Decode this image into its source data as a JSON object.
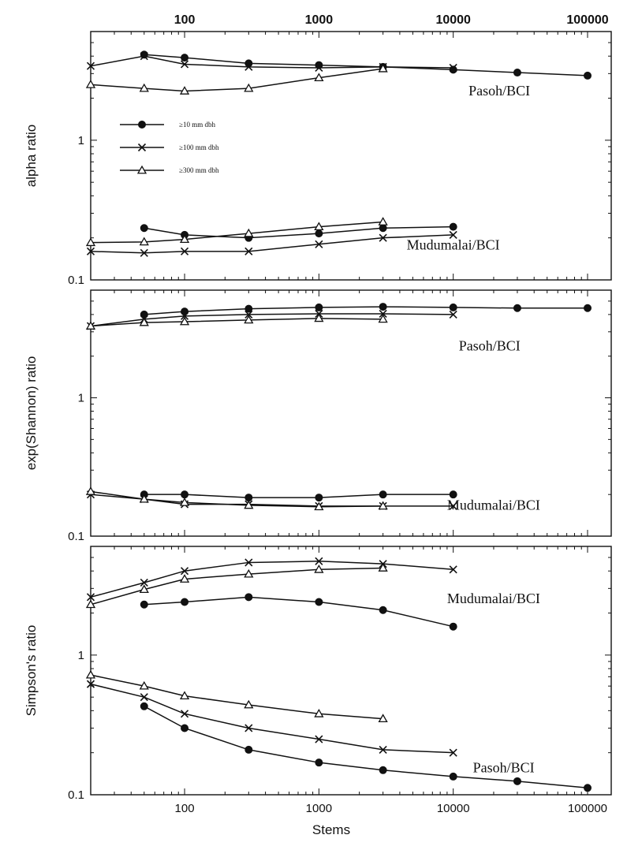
{
  "chart_data": [
    {
      "type": "line",
      "ylabel": "alpha ratio",
      "xscale": "log",
      "yscale": "log",
      "xlim": [
        20,
        150000
      ],
      "ylim": [
        0.1,
        6
      ],
      "yticks": [
        {
          "v": 0.1,
          "label": "0.1"
        },
        {
          "v": 1,
          "label": "1"
        }
      ],
      "top_xticks": [
        {
          "v": 100,
          "label": "100"
        },
        {
          "v": 1000,
          "label": "1000"
        },
        {
          "v": 10000,
          "label": "10000"
        },
        {
          "v": 100000,
          "label": "100000"
        }
      ],
      "legend": [
        {
          "label": "≥10 mm dbh",
          "marker": "circle"
        },
        {
          "label": "≥100 mm dbh",
          "marker": "x"
        },
        {
          "label": "≥300 mm dbh",
          "marker": "triangle"
        }
      ],
      "annotations": [
        {
          "text": "Pasoh/BCI",
          "x": 13000,
          "y": 2.1
        },
        {
          "text": "Mudumalai/BCI",
          "x": 4500,
          "y": 0.165
        }
      ],
      "series": [
        {
          "group": "Pasoh/BCI",
          "marker": "circle",
          "x": [
            50,
            100,
            300,
            1000,
            3000,
            10000,
            30000,
            100000
          ],
          "y": [
            4.1,
            3.9,
            3.55,
            3.45,
            3.35,
            3.2,
            3.05,
            2.9
          ]
        },
        {
          "group": "Pasoh/BCI",
          "marker": "x",
          "x": [
            20,
            50,
            100,
            300,
            1000,
            3000,
            10000
          ],
          "y": [
            3.4,
            4.0,
            3.5,
            3.35,
            3.3,
            3.35,
            3.3
          ]
        },
        {
          "group": "Pasoh/BCI",
          "marker": "triangle",
          "x": [
            20,
            50,
            100,
            300,
            1000,
            3000
          ],
          "y": [
            2.5,
            2.35,
            2.25,
            2.35,
            2.8,
            3.25
          ]
        },
        {
          "group": "Mudumalai/BCI",
          "marker": "circle",
          "x": [
            50,
            100,
            300,
            1000,
            3000,
            10000
          ],
          "y": [
            0.235,
            0.21,
            0.2,
            0.215,
            0.235,
            0.24
          ]
        },
        {
          "group": "Mudumalai/BCI",
          "marker": "x",
          "x": [
            20,
            50,
            100,
            300,
            1000,
            3000,
            10000
          ],
          "y": [
            0.16,
            0.156,
            0.16,
            0.16,
            0.18,
            0.2,
            0.21
          ]
        },
        {
          "group": "Mudumalai/BCI",
          "marker": "triangle",
          "x": [
            20,
            50,
            100,
            300,
            1000,
            3000
          ],
          "y": [
            0.185,
            0.187,
            0.195,
            0.215,
            0.24,
            0.26
          ]
        }
      ]
    },
    {
      "type": "line",
      "ylabel": "exp(Shannon) ratio",
      "xscale": "log",
      "yscale": "log",
      "xlim": [
        20,
        150000
      ],
      "ylim": [
        0.1,
        6
      ],
      "yticks": [
        {
          "v": 0.1,
          "label": "0.1"
        },
        {
          "v": 1,
          "label": "1"
        }
      ],
      "annotations": [
        {
          "text": "Pasoh/BCI",
          "x": 11000,
          "y": 2.2
        },
        {
          "text": "Mudumalai/BCI",
          "x": 9000,
          "y": 0.155
        }
      ],
      "series": [
        {
          "group": "Pasoh/BCI",
          "marker": "circle",
          "x": [
            50,
            100,
            300,
            1000,
            3000,
            10000,
            30000,
            100000
          ],
          "y": [
            4.0,
            4.2,
            4.4,
            4.5,
            4.55,
            4.5,
            4.45,
            4.45
          ]
        },
        {
          "group": "Pasoh/BCI",
          "marker": "x",
          "x": [
            20,
            50,
            100,
            300,
            1000,
            3000,
            10000
          ],
          "y": [
            3.3,
            3.7,
            3.9,
            4.0,
            4.05,
            4.05,
            4.0
          ]
        },
        {
          "group": "Pasoh/BCI",
          "marker": "triangle",
          "x": [
            20,
            50,
            100,
            300,
            1000,
            3000
          ],
          "y": [
            3.3,
            3.5,
            3.55,
            3.65,
            3.75,
            3.7
          ]
        },
        {
          "group": "Mudumalai/BCI",
          "marker": "circle",
          "x": [
            50,
            100,
            300,
            1000,
            3000,
            10000
          ],
          "y": [
            0.2,
            0.2,
            0.19,
            0.19,
            0.2,
            0.2
          ]
        },
        {
          "group": "Mudumalai/BCI",
          "marker": "x",
          "x": [
            20,
            50,
            100,
            300,
            1000,
            3000,
            10000
          ],
          "y": [
            0.2,
            0.185,
            0.17,
            0.17,
            0.165,
            0.165,
            0.165
          ]
        },
        {
          "group": "Mudumalai/BCI",
          "marker": "triangle",
          "x": [
            20,
            50,
            100,
            300,
            1000,
            3000
          ],
          "y": [
            0.21,
            0.185,
            0.175,
            0.167,
            0.163,
            0.165
          ]
        }
      ]
    },
    {
      "type": "line",
      "ylabel": "Simpson's ratio",
      "xlabel": "Stems",
      "xscale": "log",
      "yscale": "log",
      "xlim": [
        20,
        150000
      ],
      "ylim": [
        0.1,
        6
      ],
      "yticks": [
        {
          "v": 0.1,
          "label": "0.1"
        },
        {
          "v": 1,
          "label": "1"
        }
      ],
      "xticks": [
        {
          "v": 100,
          "label": "100"
        },
        {
          "v": 1000,
          "label": "1000"
        },
        {
          "v": 10000,
          "label": "10000"
        },
        {
          "v": 100000,
          "label": "100000"
        }
      ],
      "annotations": [
        {
          "text": "Mudumalai/BCI",
          "x": 9000,
          "y": 2.35
        },
        {
          "text": "Pasoh/BCI",
          "x": 14000,
          "y": 0.145
        }
      ],
      "series": [
        {
          "group": "Mudumalai/BCI",
          "marker": "circle",
          "x": [
            50,
            100,
            300,
            1000,
            3000,
            10000
          ],
          "y": [
            2.3,
            2.4,
            2.6,
            2.4,
            2.1,
            1.6
          ]
        },
        {
          "group": "Mudumalai/BCI",
          "marker": "x",
          "x": [
            20,
            50,
            100,
            300,
            1000,
            3000,
            10000
          ],
          "y": [
            2.6,
            3.3,
            4.0,
            4.6,
            4.7,
            4.5,
            4.1
          ]
        },
        {
          "group": "Mudumalai/BCI",
          "marker": "triangle",
          "x": [
            20,
            50,
            100,
            300,
            1000,
            3000
          ],
          "y": [
            2.3,
            2.95,
            3.5,
            3.8,
            4.1,
            4.2
          ]
        },
        {
          "group": "Pasoh/BCI",
          "marker": "circle",
          "x": [
            50,
            100,
            300,
            1000,
            3000,
            10000,
            30000,
            100000
          ],
          "y": [
            0.43,
            0.3,
            0.21,
            0.17,
            0.15,
            0.135,
            0.125,
            0.112
          ]
        },
        {
          "group": "Pasoh/BCI",
          "marker": "x",
          "x": [
            20,
            50,
            100,
            300,
            1000,
            3000,
            10000
          ],
          "y": [
            0.62,
            0.5,
            0.38,
            0.3,
            0.25,
            0.21,
            0.2
          ]
        },
        {
          "group": "Pasoh/BCI",
          "marker": "triangle",
          "x": [
            20,
            50,
            100,
            300,
            1000,
            3000
          ],
          "y": [
            0.72,
            0.6,
            0.51,
            0.44,
            0.38,
            0.35
          ]
        }
      ]
    }
  ]
}
